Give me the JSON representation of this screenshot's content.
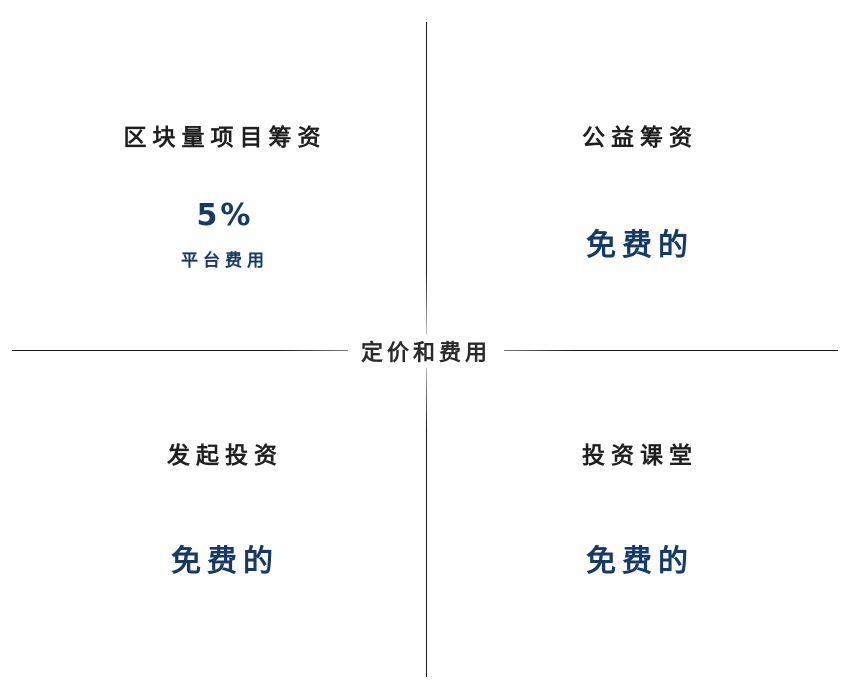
{
  "center_label": "定价和费用",
  "quadrants": {
    "top_left": {
      "title": "区块量项目筹资",
      "value": "5%",
      "caption": "平台费用"
    },
    "top_right": {
      "title": "公益筹资",
      "value": "免费的"
    },
    "bottom_left": {
      "title": "发起投资",
      "value": "免费的"
    },
    "bottom_right": {
      "title": "投资课堂",
      "value": "免费的"
    }
  },
  "colors": {
    "accent": "#163a66",
    "title": "#1f1f1f",
    "divider": "#1a1a1a"
  }
}
